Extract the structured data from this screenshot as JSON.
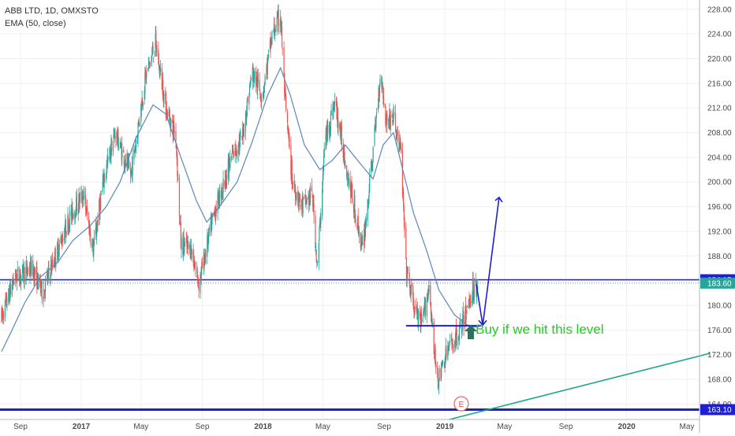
{
  "header": {
    "symbol": "ABB LTD, 1D, OMXSTO",
    "indicator": "EMA (50, close)"
  },
  "annotation": {
    "text": "Buy if we hit this level",
    "earnings_marker": "E"
  },
  "colors": {
    "up": "#26a69a",
    "down": "#ef5350",
    "ema": "#5b87b8",
    "level": "#1f1fcf",
    "trend": "#1aa58d",
    "annotation": "#22cc22",
    "arrow": "#2f6f5e",
    "earnings": "#e04848",
    "price_badge": "#26a69a"
  },
  "chart_data": {
    "type": "candlestick",
    "y_range": [
      161.5,
      229.5
    ],
    "y_ticks": [
      "228.00",
      "224.00",
      "220.00",
      "216.00",
      "212.00",
      "208.00",
      "204.00",
      "200.00",
      "196.00",
      "192.00",
      "188.00",
      "184.00",
      "180.00",
      "176.00",
      "172.00",
      "168.00",
      "164.00"
    ],
    "x_ticks": [
      "Sep",
      "2017",
      "May",
      "Sep",
      "2018",
      "May",
      "Sep",
      "2019",
      "May",
      "Sep",
      "2020",
      "May"
    ],
    "x_tick_dates": [
      "2016-09-01",
      "2017-01-01",
      "2017-05-01",
      "2017-09-01",
      "2018-01-01",
      "2018-05-01",
      "2018-09-01",
      "2019-01-01",
      "2019-05-01",
      "2019-09-01",
      "2020-01-01",
      "2020-05-01"
    ],
    "price_path": [
      [
        "2016-07-25",
        178.0
      ],
      [
        "2016-08-20",
        184.5
      ],
      [
        "2016-09-25",
        186.0
      ],
      [
        "2016-10-15",
        182.0
      ],
      [
        "2016-11-10",
        188.0
      ],
      [
        "2016-12-10",
        194.5
      ],
      [
        "2017-01-05",
        198.0
      ],
      [
        "2017-01-25",
        189.0
      ],
      [
        "2017-02-15",
        200.5
      ],
      [
        "2017-03-10",
        208.0
      ],
      [
        "2017-04-10",
        201.0
      ],
      [
        "2017-05-10",
        217.0
      ],
      [
        "2017-05-30",
        222.5
      ],
      [
        "2017-06-20",
        212.0
      ],
      [
        "2017-07-10",
        207.5
      ],
      [
        "2017-07-20",
        190.0
      ],
      [
        "2017-08-10",
        189.0
      ],
      [
        "2017-08-25",
        183.5
      ],
      [
        "2017-09-10",
        189.5
      ],
      [
        "2017-09-25",
        195.0
      ],
      [
        "2017-10-15",
        200.0
      ],
      [
        "2017-11-01",
        204.5
      ],
      [
        "2017-11-20",
        207.0
      ],
      [
        "2017-12-10",
        218.0
      ],
      [
        "2017-12-30",
        214.0
      ],
      [
        "2018-01-20",
        224.0
      ],
      [
        "2018-02-05",
        227.0
      ],
      [
        "2018-02-15",
        212.0
      ],
      [
        "2018-03-01",
        200.0
      ],
      [
        "2018-03-20",
        196.0
      ],
      [
        "2018-04-10",
        198.0
      ],
      [
        "2018-04-20",
        186.0
      ],
      [
        "2018-05-05",
        206.5
      ],
      [
        "2018-05-25",
        213.0
      ],
      [
        "2018-06-15",
        203.5
      ],
      [
        "2018-07-05",
        195.0
      ],
      [
        "2018-07-20",
        189.0
      ],
      [
        "2018-08-10",
        205.0
      ],
      [
        "2018-08-25",
        218.0
      ],
      [
        "2018-09-05",
        210.0
      ],
      [
        "2018-09-20",
        210.5
      ],
      [
        "2018-10-05",
        204.5
      ],
      [
        "2018-10-15",
        186.0
      ],
      [
        "2018-10-30",
        180.0
      ],
      [
        "2018-11-15",
        176.5
      ],
      [
        "2018-12-01",
        183.5
      ],
      [
        "2018-12-10",
        172.0
      ],
      [
        "2018-12-20",
        168.0
      ],
      [
        "2019-01-05",
        172.5
      ],
      [
        "2019-01-25",
        175.0
      ],
      [
        "2019-02-10",
        178.0
      ],
      [
        "2019-02-25",
        182.5
      ],
      [
        "2019-03-10",
        183.6
      ]
    ],
    "ema_path": [
      [
        "2016-07-25",
        172.5
      ],
      [
        "2016-08-15",
        176.0
      ],
      [
        "2016-09-10",
        180.5
      ],
      [
        "2016-10-10",
        184.5
      ],
      [
        "2016-11-15",
        187.0
      ],
      [
        "2016-12-15",
        190.5
      ],
      [
        "2017-01-20",
        193.0
      ],
      [
        "2017-02-20",
        196.0
      ],
      [
        "2017-03-20",
        200.0
      ],
      [
        "2017-04-20",
        207.0
      ],
      [
        "2017-05-25",
        212.5
      ],
      [
        "2017-06-20",
        211.0
      ],
      [
        "2017-07-20",
        204.0
      ],
      [
        "2017-08-20",
        197.0
      ],
      [
        "2017-09-10",
        193.5
      ],
      [
        "2017-10-10",
        196.5
      ],
      [
        "2017-11-10",
        200.0
      ],
      [
        "2017-12-10",
        206.5
      ],
      [
        "2018-01-10",
        214.0
      ],
      [
        "2018-02-05",
        218.5
      ],
      [
        "2018-02-25",
        214.0
      ],
      [
        "2018-03-25",
        206.0
      ],
      [
        "2018-04-25",
        202.0
      ],
      [
        "2018-05-20",
        203.5
      ],
      [
        "2018-06-15",
        206.0
      ],
      [
        "2018-07-15",
        203.0
      ],
      [
        "2018-08-10",
        200.5
      ],
      [
        "2018-08-30",
        206.0
      ],
      [
        "2018-09-20",
        208.0
      ],
      [
        "2018-10-10",
        201.5
      ],
      [
        "2018-10-30",
        195.0
      ],
      [
        "2018-11-25",
        189.0
      ],
      [
        "2018-12-20",
        182.5
      ],
      [
        "2019-01-20",
        178.5
      ],
      [
        "2019-02-20",
        176.5
      ],
      [
        "2019-03-10",
        176.5
      ]
    ],
    "levels": [
      {
        "price": 184.15,
        "label": "184.15"
      },
      {
        "price": 163.1,
        "label": "163.10"
      }
    ],
    "current_price": {
      "price": 183.6,
      "label": "183.60"
    },
    "buy_level": {
      "price": 176.7,
      "from": "2018-10-15",
      "to": "2019-03-15"
    },
    "projection": [
      [
        "2019-03-05",
        183.5
      ],
      [
        "2019-03-18",
        176.8
      ],
      [
        "2019-03-30",
        184.2
      ],
      [
        "2019-04-20",
        197.5
      ]
    ],
    "trendline": {
      "from": [
        "2019-01-10",
        161.5
      ],
      "to": [
        "2020-06-15",
        172.2
      ]
    },
    "earnings_date": "2019-02-03"
  }
}
